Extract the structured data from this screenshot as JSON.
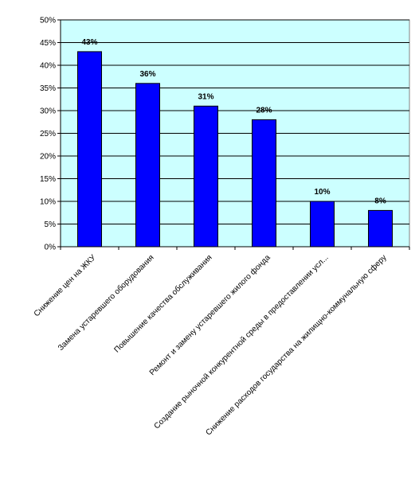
{
  "chart_data": {
    "type": "bar",
    "categories": [
      "Снижение цен на ЖКУ",
      "Замена устаревшего оборудования",
      "Повышение качества обслуживания",
      "Ремонт и замену устаревшего жилого фонда",
      "Создание рыночной конкурентной среды в предоставлении усл...",
      "Снижение расходов государства на жилищно-коммунальную сферу"
    ],
    "values": [
      43,
      36,
      31,
      28,
      10,
      8
    ],
    "data_labels": [
      "43%",
      "36%",
      "31%",
      "28%",
      "10%",
      "8%"
    ],
    "y_ticks": [
      {
        "value": 0,
        "label": "0%"
      },
      {
        "value": 5,
        "label": "5%"
      },
      {
        "value": 10,
        "label": "10%"
      },
      {
        "value": 15,
        "label": "15%"
      },
      {
        "value": 20,
        "label": "20%"
      },
      {
        "value": 25,
        "label": "25%"
      },
      {
        "value": 30,
        "label": "30%"
      },
      {
        "value": 35,
        "label": "35%"
      },
      {
        "value": 40,
        "label": "40%"
      },
      {
        "value": 45,
        "label": "45%"
      },
      {
        "value": 50,
        "label": "50%"
      }
    ],
    "ylim": [
      0,
      50
    ],
    "grid": true,
    "legend": "none",
    "title": "",
    "xlabel": "",
    "ylabel": "",
    "colors": {
      "bar": "#0000FF",
      "bar_stroke": "#000000",
      "plot_background": "#CCFFFF",
      "gridline": "#000000",
      "axis": "#000000"
    }
  }
}
